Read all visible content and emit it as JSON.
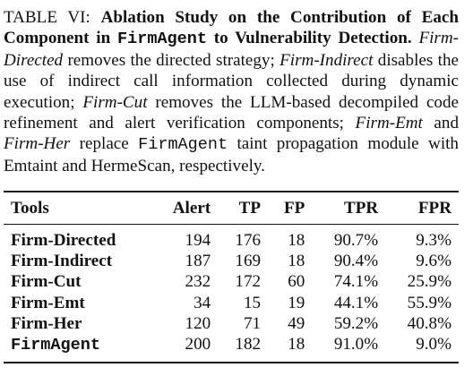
{
  "caption": {
    "label": "TABLE VI:",
    "title_pre": "Ablation Study on the Contribution of Each Component in",
    "title_code": "FirmAgent",
    "title_post": "to Vulnerability Detection.",
    "s1_it": "Firm-Directed",
    "s1": "removes the directed strategy;",
    "s2_it": "Firm-Indirect",
    "s2": "disables the use of indirect call information collected during dynamic execution;",
    "s3_it": "Firm-Cut",
    "s3": "removes the LLM-based decompiled code refinement and alert verification components;",
    "s4_it_a": "Firm-Emt",
    "s4_and": "and",
    "s4_it_b": "Firm-Her",
    "s4_replace": "replace",
    "s4_code": "FirmAgent",
    "s4_end": "taint propagation module with Emtaint and HermeScan, respectively."
  },
  "table": {
    "headers": [
      "Tools",
      "Alert",
      "TP",
      "FP",
      "TPR",
      "FPR"
    ],
    "rows": [
      {
        "tool": "Firm-Directed",
        "alert": "194",
        "tp": "176",
        "fp": "18",
        "tpr": "90.7%",
        "fpr": "9.3%"
      },
      {
        "tool": "Firm-Indirect",
        "alert": "187",
        "tp": "169",
        "fp": "18",
        "tpr": "90.4%",
        "fpr": "9.6%"
      },
      {
        "tool": "Firm-Cut",
        "alert": "232",
        "tp": "172",
        "fp": "60",
        "tpr": "74.1%",
        "fpr": "25.9%"
      },
      {
        "tool": "Firm-Emt",
        "alert": "34",
        "tp": "15",
        "fp": "19",
        "tpr": "44.1%",
        "fpr": "55.9%"
      },
      {
        "tool": "Firm-Her",
        "alert": "120",
        "tp": "71",
        "fp": "49",
        "tpr": "59.2%",
        "fpr": "40.8%"
      },
      {
        "tool": "FirmAgent",
        "alert": "200",
        "tp": "182",
        "fp": "18",
        "tpr": "91.0%",
        "fpr": "9.0%"
      }
    ]
  }
}
